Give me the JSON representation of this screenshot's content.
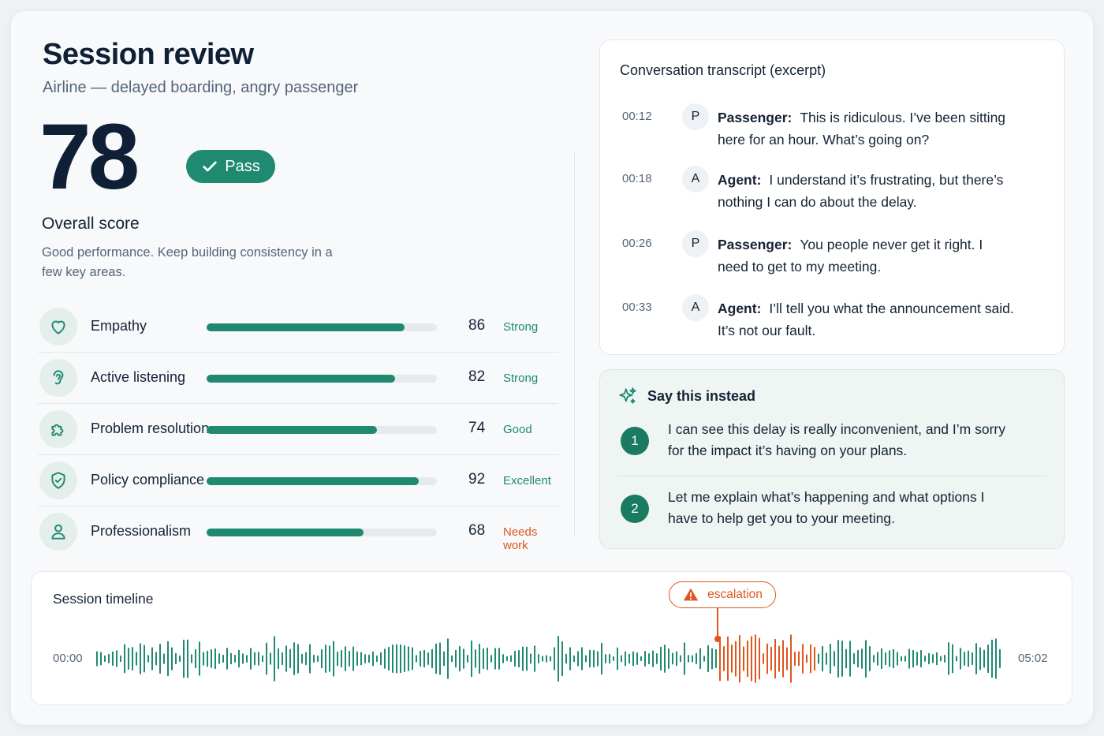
{
  "header": {
    "title": "Session review",
    "subtitle": "Airline — delayed boarding, angry passenger"
  },
  "score": {
    "value": "78",
    "status_label": "Pass",
    "caption": "Overall score",
    "description": "Good performance. Keep building consistency in a few key areas."
  },
  "metrics": [
    {
      "label": "Empathy",
      "value": "86",
      "rating": "Strong",
      "icon": "heart-icon"
    },
    {
      "label": "Active listening",
      "value": "82",
      "rating": "Strong",
      "icon": "ear-icon"
    },
    {
      "label": "Problem resolution",
      "value": "74",
      "rating": "Good",
      "icon": "puzzle-icon"
    },
    {
      "label": "Policy compliance",
      "value": "92",
      "rating": "Excellent",
      "icon": "shield-check-icon"
    },
    {
      "label": "Professionalism",
      "value": "68",
      "rating": "Needs work",
      "icon": "user-icon"
    }
  ],
  "transcript": {
    "title": "Conversation transcript (excerpt)",
    "entries": [
      {
        "time": "00:12",
        "badge": "P",
        "speaker": "Passenger:",
        "text": "This is ridiculous. I’ve been sitting here for an hour. What’s going on?"
      },
      {
        "time": "00:18",
        "badge": "A",
        "speaker": "Agent:",
        "text": "I understand it’s frustrating, but there’s nothing I can do about the delay."
      },
      {
        "time": "00:26",
        "badge": "P",
        "speaker": "Passenger:",
        "text": "You people never get it right. I need to get to my meeting."
      },
      {
        "time": "00:33",
        "badge": "A",
        "speaker": "Agent:",
        "text": "I’ll tell you what the announcement said. It’s not our fault."
      }
    ]
  },
  "suggestions": {
    "title": "Say this instead",
    "icon": "sparkle-icon",
    "items": [
      {
        "number": "1",
        "text": "I can see this delay is really inconvenient, and I’m sorry for the impact it’s having on your plans."
      },
      {
        "number": "2",
        "text": "Let me explain what’s happening and what options I have to help get you to your meeting."
      }
    ]
  },
  "timeline": {
    "title": "Session timeline",
    "start": "00:00",
    "end": "05:02",
    "marker_label": "escalation",
    "marker_icon": "warning-icon"
  },
  "colors": {
    "accent": "#1f8a70",
    "warning": "#e0561c",
    "text": "#142235",
    "muted": "#56657a"
  }
}
